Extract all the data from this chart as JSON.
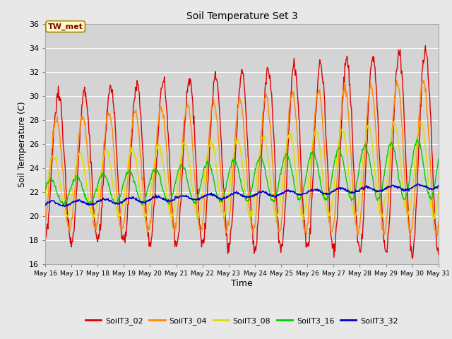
{
  "title": "Soil Temperature Set 3",
  "xlabel": "Time",
  "ylabel": "Soil Temperature (C)",
  "ylim": [
    16,
    36
  ],
  "yticks": [
    16,
    18,
    20,
    22,
    24,
    26,
    28,
    30,
    32,
    34,
    36
  ],
  "fig_bg_color": "#e8e8e8",
  "plot_bg_color": "#d4d4d4",
  "annotation_text": "TW_met",
  "annotation_bg": "#ffffcc",
  "annotation_border": "#aa8800",
  "annotation_text_color": "#880000",
  "series": {
    "SoilT3_02": {
      "color": "#dd0000",
      "linewidth": 1.0
    },
    "SoilT3_04": {
      "color": "#ff8800",
      "linewidth": 1.0
    },
    "SoilT3_08": {
      "color": "#dddd00",
      "linewidth": 1.0
    },
    "SoilT3_16": {
      "color": "#00cc00",
      "linewidth": 1.0
    },
    "SoilT3_32": {
      "color": "#0000cc",
      "linewidth": 1.2
    }
  },
  "xtick_labels": [
    "May 16",
    "May 17",
    "May 18",
    "May 19",
    "May 20",
    "May 21",
    "May 22",
    "May 23",
    "May 24",
    "May 25",
    "May 26",
    "May 27",
    "May 28",
    "May 29",
    "May 30",
    "May 31"
  ]
}
